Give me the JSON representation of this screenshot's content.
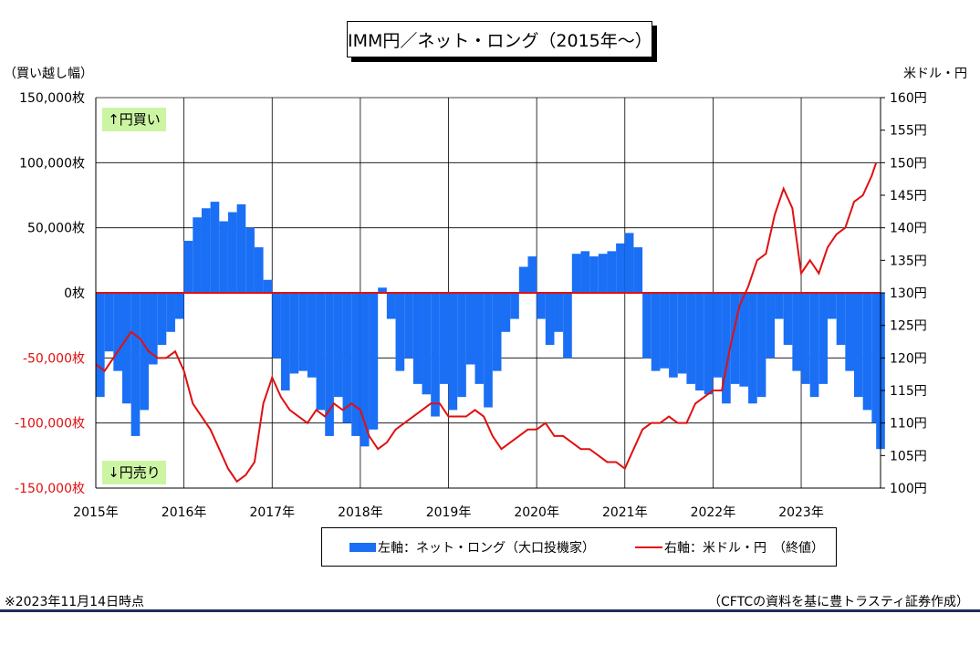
{
  "title": "IMM円／ネット・ロング（2015年～）",
  "left_axis_label": "（買い越し幅）",
  "right_axis_label": "米ドル・円",
  "buy_label": "↑円買い",
  "sell_label": "↓円売り",
  "legend": {
    "bar": "左軸：ネット・ロング（大口投機家）",
    "line": "右軸：米ドル・円　（終値）"
  },
  "footnote_left": "※2023年11月14日時点",
  "footnote_right": "（CFTCの資料を基に豊トラスティ証券作成）",
  "colors": {
    "bar": "#1a6ff5",
    "line": "#e01010",
    "zero_line": "#e01010",
    "label_bg": "#ccf5a3"
  },
  "chart_data": {
    "type": "bar",
    "left_ylim": [
      -150000,
      150000
    ],
    "right_ylim": [
      100,
      160
    ],
    "left_ticks": [
      "150,000枚",
      "100,000枚",
      "50,000枚",
      "0枚",
      "-50,000枚",
      "-100,000枚",
      "-150,000枚"
    ],
    "right_ticks": [
      "160円",
      "155円",
      "150円",
      "145円",
      "140円",
      "135円",
      "130円",
      "125円",
      "120円",
      "115円",
      "110円",
      "105円",
      "100円"
    ],
    "x_ticks": [
      "2015年",
      "2016年",
      "2017年",
      "2018年",
      "2019年",
      "2020年",
      "2021年",
      "2022年",
      "2023年"
    ],
    "x_range": [
      2015.0,
      2023.9
    ],
    "series": [
      {
        "name": "左軸：ネット・ロング（大口投機家）",
        "axis": "left",
        "kind": "bar",
        "x": [
          2015.0,
          2015.1,
          2015.2,
          2015.3,
          2015.4,
          2015.5,
          2015.6,
          2015.7,
          2015.8,
          2015.9,
          2016.0,
          2016.1,
          2016.2,
          2016.3,
          2016.4,
          2016.5,
          2016.6,
          2016.7,
          2016.8,
          2016.9,
          2017.0,
          2017.1,
          2017.2,
          2017.3,
          2017.4,
          2017.5,
          2017.6,
          2017.7,
          2017.8,
          2017.9,
          2018.0,
          2018.1,
          2018.2,
          2018.3,
          2018.4,
          2018.5,
          2018.6,
          2018.7,
          2018.8,
          2018.9,
          2019.0,
          2019.1,
          2019.2,
          2019.3,
          2019.4,
          2019.5,
          2019.6,
          2019.7,
          2019.8,
          2019.9,
          2020.0,
          2020.1,
          2020.2,
          2020.3,
          2020.4,
          2020.5,
          2020.6,
          2020.7,
          2020.8,
          2020.9,
          2021.0,
          2021.1,
          2021.2,
          2021.3,
          2021.4,
          2021.5,
          2021.6,
          2021.7,
          2021.8,
          2021.9,
          2022.0,
          2022.1,
          2022.2,
          2022.3,
          2022.4,
          2022.5,
          2022.6,
          2022.7,
          2022.8,
          2022.9,
          2023.0,
          2023.1,
          2023.2,
          2023.3,
          2023.4,
          2023.5,
          2023.6,
          2023.7,
          2023.8,
          2023.85
        ],
        "values": [
          -80000,
          -45000,
          -60000,
          -85000,
          -110000,
          -90000,
          -55000,
          -40000,
          -30000,
          -20000,
          40000,
          58000,
          65000,
          70000,
          55000,
          62000,
          68000,
          50000,
          35000,
          10000,
          -50000,
          -75000,
          -62000,
          -60000,
          -65000,
          -90000,
          -110000,
          -80000,
          -100000,
          -110000,
          -118000,
          -105000,
          4000,
          -20000,
          -60000,
          -50000,
          -70000,
          -78000,
          -95000,
          -70000,
          -90000,
          -80000,
          -55000,
          -70000,
          -88000,
          -60000,
          -30000,
          -20000,
          20000,
          28000,
          -20000,
          -40000,
          -30000,
          -50000,
          30000,
          32000,
          28000,
          30000,
          32000,
          38000,
          46000,
          35000,
          -50000,
          -60000,
          -58000,
          -65000,
          -62000,
          -70000,
          -75000,
          -78000,
          -65000,
          -85000,
          -70000,
          -72000,
          -85000,
          -80000,
          -50000,
          -20000,
          -40000,
          -60000,
          -70000,
          -80000,
          -70000,
          -20000,
          -40000,
          -60000,
          -80000,
          -90000,
          -100000,
          -120000
        ]
      },
      {
        "name": "右軸：米ドル・円　（終値）",
        "axis": "right",
        "kind": "line",
        "x": [
          2015.0,
          2015.1,
          2015.2,
          2015.3,
          2015.4,
          2015.5,
          2015.6,
          2015.7,
          2015.8,
          2015.9,
          2016.0,
          2016.1,
          2016.2,
          2016.3,
          2016.4,
          2016.5,
          2016.6,
          2016.7,
          2016.8,
          2016.9,
          2017.0,
          2017.1,
          2017.2,
          2017.3,
          2017.4,
          2017.5,
          2017.6,
          2017.7,
          2017.8,
          2017.9,
          2018.0,
          2018.1,
          2018.2,
          2018.3,
          2018.4,
          2018.5,
          2018.6,
          2018.7,
          2018.8,
          2018.9,
          2019.0,
          2019.1,
          2019.2,
          2019.3,
          2019.4,
          2019.5,
          2019.6,
          2019.7,
          2019.8,
          2019.9,
          2020.0,
          2020.1,
          2020.2,
          2020.3,
          2020.4,
          2020.5,
          2020.6,
          2020.7,
          2020.8,
          2020.9,
          2021.0,
          2021.1,
          2021.2,
          2021.3,
          2021.4,
          2021.5,
          2021.6,
          2021.7,
          2021.8,
          2021.9,
          2022.0,
          2022.1,
          2022.2,
          2022.3,
          2022.4,
          2022.5,
          2022.6,
          2022.7,
          2022.8,
          2022.9,
          2023.0,
          2023.1,
          2023.2,
          2023.3,
          2023.4,
          2023.5,
          2023.6,
          2023.7,
          2023.8,
          2023.85
        ],
        "values": [
          119,
          118,
          120,
          122,
          124,
          123,
          121,
          120,
          120,
          121,
          118,
          113,
          111,
          109,
          106,
          103,
          101,
          102,
          104,
          113,
          117,
          114,
          112,
          111,
          110,
          112,
          111,
          113,
          112,
          113,
          112,
          108,
          106,
          107,
          109,
          110,
          111,
          112,
          113,
          113,
          111,
          111,
          111,
          112,
          111,
          108,
          106,
          107,
          108,
          109,
          109,
          110,
          108,
          108,
          107,
          106,
          106,
          105,
          104,
          104,
          103,
          106,
          109,
          110,
          110,
          111,
          110,
          110,
          113,
          114,
          115,
          115,
          122,
          128,
          131,
          135,
          136,
          142,
          146,
          143,
          133,
          135,
          133,
          137,
          139,
          140,
          144,
          145,
          148,
          150
        ]
      }
    ]
  }
}
